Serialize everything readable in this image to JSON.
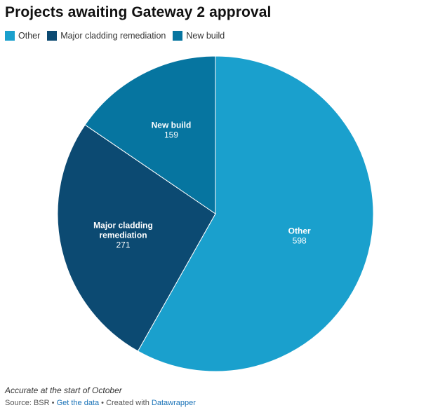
{
  "title": "Projects awaiting Gateway 2 approval",
  "notes": "Accurate at the start of October",
  "footer": {
    "source": "Source: BSR",
    "sep1": " • ",
    "get_data": "Get the data",
    "sep2": " • Created with ",
    "tool": "Datawrapper"
  },
  "chart_data": {
    "type": "pie",
    "slices": [
      {
        "label": "Other",
        "name_lines": [
          "Other"
        ],
        "value": 598,
        "color": "#1aa0cd"
      },
      {
        "label": "Major cladding remediation",
        "name_lines": [
          "Major cladding",
          "remediation"
        ],
        "value": 271,
        "color": "#0c4a72"
      },
      {
        "label": "New build",
        "name_lines": [
          "New build"
        ],
        "value": 159,
        "color": "#0675a0"
      }
    ],
    "legend": [
      "Other",
      "Major cladding remediation",
      "New build"
    ],
    "legend_position": "top-left"
  }
}
